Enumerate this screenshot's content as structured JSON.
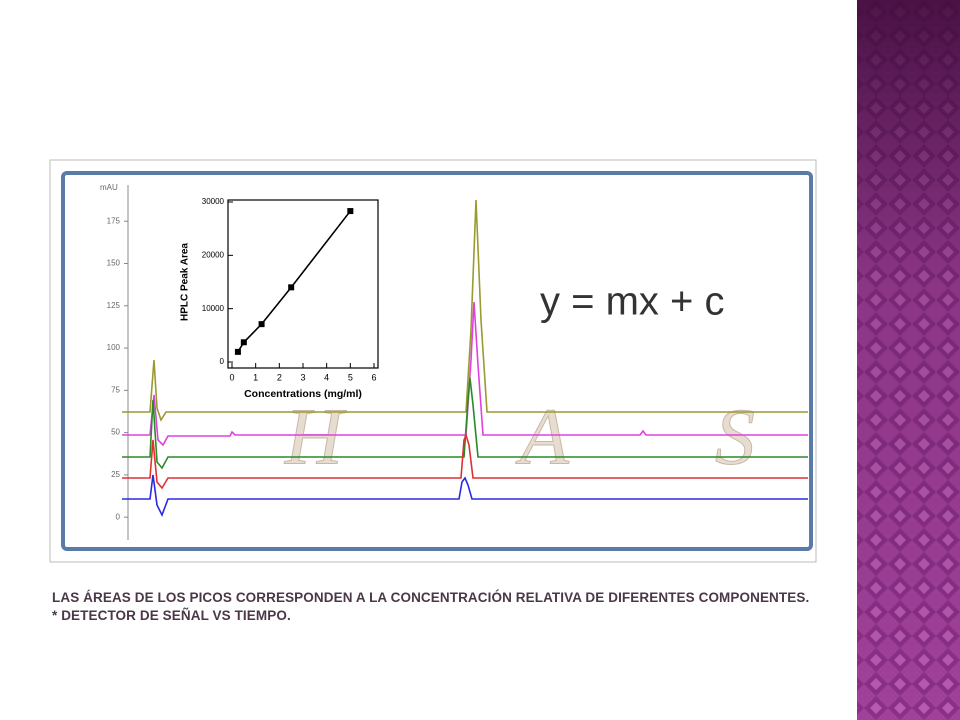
{
  "chart_data": [
    {
      "type": "line",
      "y_label": "mAU",
      "ylim": [
        -20,
        197
      ],
      "yticks": [
        0,
        25,
        50,
        75,
        100,
        125,
        150,
        175
      ]
    },
    {
      "type": "line",
      "x_label": "Concentrations (mg/ml)",
      "y_label": "HPLC Peak Area",
      "x": [
        0.25,
        0.5,
        1.25,
        2.5,
        5
      ],
      "values": [
        1900,
        3700,
        7100,
        14000,
        28300
      ],
      "color": "#000000",
      "xlim": [
        0,
        6
      ],
      "xticks": [
        0,
        1,
        2,
        3,
        4,
        5,
        6
      ],
      "ylim": [
        0,
        30000
      ],
      "yticks": [
        0,
        10000,
        20000,
        30000
      ]
    }
  ],
  "slide": {
    "equation": "y = mx + c",
    "watermark": [
      "H",
      "A",
      "S"
    ],
    "caption": [
      "LAS ÁREAS DE LOS PICOS CORRESPONDEN A LA CONCENTRACIÓN RELATIVA DE  DIFERENTES COMPONENTES.",
      "* DETECTOR DE SEÑAL VS TIEMPO."
    ]
  }
}
